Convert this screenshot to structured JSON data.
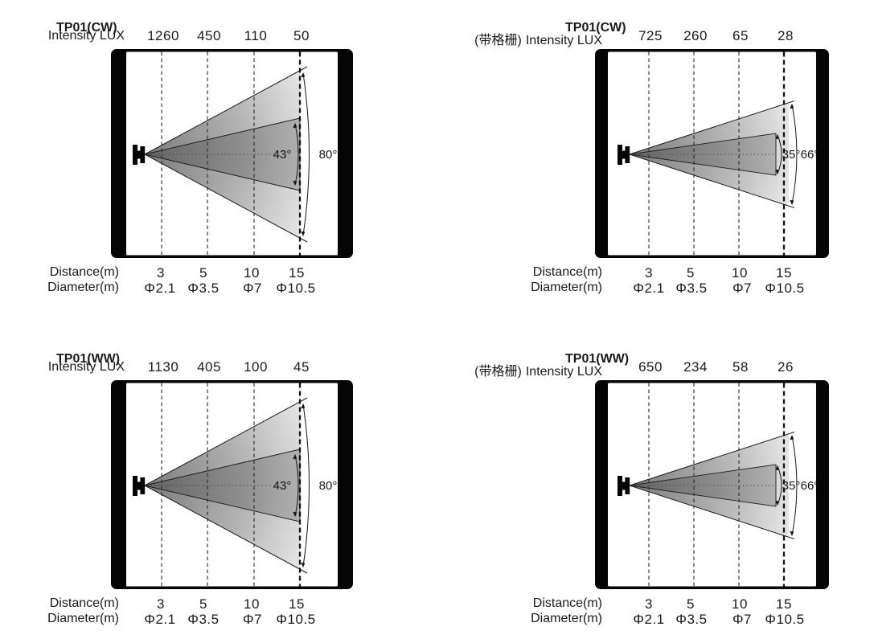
{
  "page": {
    "background": "#ffffff",
    "text_color": "#1a1a1a"
  },
  "colors": {
    "frame": "#050505",
    "beam_inner_start": "#636363",
    "beam_inner_end": "#b2b2b2",
    "beam_outer_start": "#7b7b7b",
    "beam_outer_end": "#ececec",
    "line": "#1c1c1c"
  },
  "panels": [
    {
      "id": "tp01-cw",
      "title": "TP01(CW)",
      "prefix": "",
      "intensity_label": "Intensity LUX",
      "intensity_values": [
        "1260",
        "450",
        "110",
        "50"
      ],
      "beam_angle_inner": "43°",
      "beam_angle_outer": "80°",
      "distance_label": "Distance(m)",
      "distance_values": [
        "3",
        "5",
        "10",
        "15"
      ],
      "diameter_label": "Diameter(m)",
      "diameter_values": [
        "Φ2.1",
        "Φ3.5",
        "Φ7",
        "Φ10.5"
      ]
    },
    {
      "id": "tp01-cw-louver",
      "title": "TP01(CW)",
      "prefix": "(带格栅)",
      "intensity_label": "Intensity LUX",
      "intensity_values": [
        "725",
        "260",
        "65",
        "28"
      ],
      "beam_angle_inner": "35°",
      "beam_angle_outer": "66°",
      "distance_label": "Distance(m)",
      "distance_values": [
        "3",
        "5",
        "10",
        "15"
      ],
      "diameter_label": "Diameter(m)",
      "diameter_values": [
        "Φ2.1",
        "Φ3.5",
        "Φ7",
        "Φ10.5"
      ]
    },
    {
      "id": "tp01-ww",
      "title": "TP01(WW)",
      "prefix": "",
      "intensity_label": "Intensity LUX",
      "intensity_values": [
        "1130",
        "405",
        "100",
        "45"
      ],
      "beam_angle_inner": "43°",
      "beam_angle_outer": "80°",
      "distance_label": "Distance(m)",
      "distance_values": [
        "3",
        "5",
        "10",
        "15"
      ],
      "diameter_label": "Diameter(m)",
      "diameter_values": [
        "Φ2.1",
        "Φ3.5",
        "Φ7",
        "Φ10.5"
      ]
    },
    {
      "id": "tp01-ww-louver",
      "title": "TP01(WW)",
      "prefix": "(带格栅)",
      "intensity_label": "Intensity LUX",
      "intensity_values": [
        "650",
        "234",
        "58",
        "26"
      ],
      "beam_angle_inner": "35°",
      "beam_angle_outer": "66°",
      "distance_label": "Distance(m)",
      "distance_values": [
        "3",
        "5",
        "10",
        "15"
      ],
      "diameter_label": "Diameter(m)",
      "diameter_values": [
        "Φ2.1",
        "Φ3.5",
        "Φ7",
        "Φ10.5"
      ]
    }
  ]
}
